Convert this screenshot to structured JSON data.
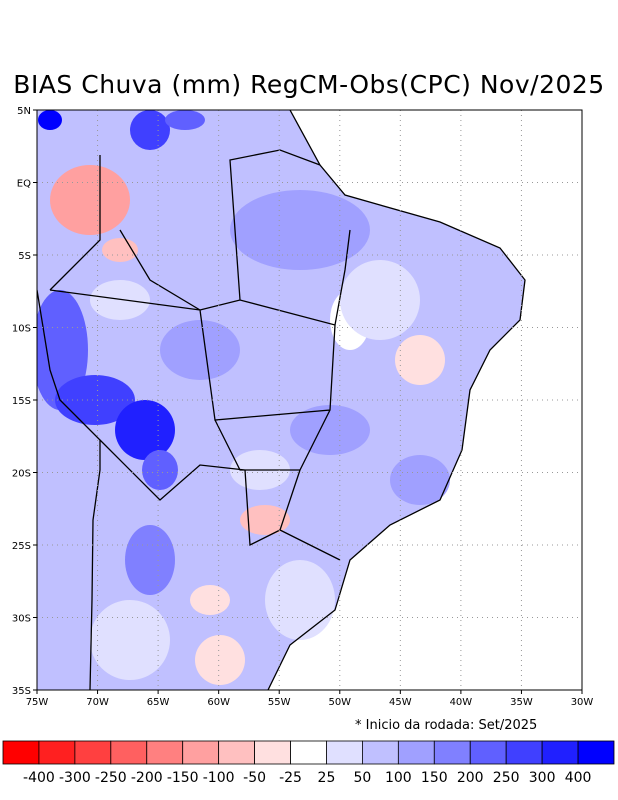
{
  "title": "BIAS Chuva (mm) RegCM-Obs(CPC) Nov/2025",
  "note": "* Inicio da rodada: Set/2025",
  "map": {
    "lon_range": [
      -75,
      -30
    ],
    "lat_range": [
      -35,
      5
    ],
    "lat_labels": [
      "5N",
      "EQ",
      "5S",
      "10S",
      "15S",
      "20S",
      "25S",
      "30S",
      "35S"
    ],
    "lon_labels": [
      "75W",
      "70W",
      "65W",
      "60W",
      "55W",
      "50W",
      "45W",
      "40W",
      "35W",
      "30W"
    ]
  },
  "colorbar": {
    "colors": [
      "#ff0000",
      "#ff2020",
      "#ff4040",
      "#ff6060",
      "#ff8080",
      "#ffa0a0",
      "#ffc0c0",
      "#ffe0e0",
      "#ffffff",
      "#e0e0ff",
      "#c0c0ff",
      "#a0a0ff",
      "#8080ff",
      "#6060ff",
      "#4040ff",
      "#2020ff",
      "#0000ff"
    ],
    "labels": [
      "-400",
      "-300",
      "-250",
      "-200",
      "-150",
      "-100",
      "-50",
      "-25",
      "25",
      "50",
      "100",
      "150",
      "200",
      "250",
      "300",
      "400"
    ]
  }
}
